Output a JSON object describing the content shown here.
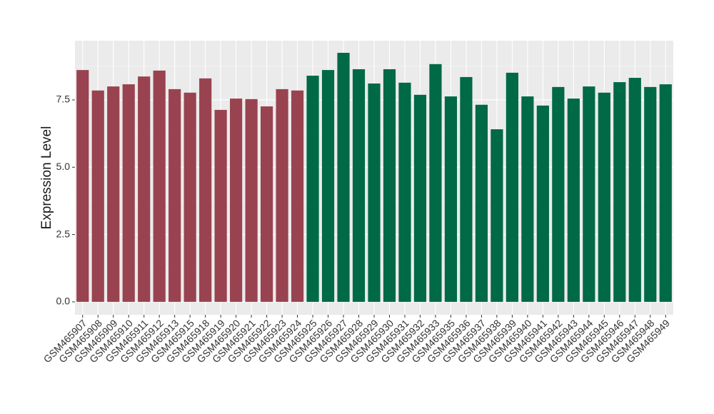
{
  "chart_data": {
    "type": "bar",
    "y_label": "Expression Level",
    "categories": [
      "GSM465907",
      "GSM465908",
      "GSM465909",
      "GSM465910",
      "GSM465911",
      "GSM465912",
      "GSM465913",
      "GSM465915",
      "GSM465918",
      "GSM465919",
      "GSM465920",
      "GSM465921",
      "GSM465922",
      "GSM465923",
      "GSM465924",
      "GSM465925",
      "GSM465926",
      "GSM465927",
      "GSM465928",
      "GSM465929",
      "GSM465930",
      "GSM465931",
      "GSM465932",
      "GSM465933",
      "GSM465935",
      "GSM465936",
      "GSM465937",
      "GSM465938",
      "GSM465939",
      "GSM465940",
      "GSM465941",
      "GSM465942",
      "GSM465943",
      "GSM465944",
      "GSM465945",
      "GSM465946",
      "GSM465947",
      "GSM465948",
      "GSM465949"
    ],
    "values": [
      8.61,
      7.85,
      8.0,
      8.08,
      8.37,
      8.59,
      7.9,
      7.77,
      8.3,
      7.13,
      7.55,
      7.53,
      7.26,
      7.9,
      7.85,
      8.4,
      8.61,
      9.25,
      8.64,
      8.11,
      8.64,
      8.14,
      7.69,
      8.83,
      7.63,
      8.35,
      7.32,
      6.41,
      8.51,
      7.63,
      7.29,
      7.98,
      7.55,
      8.0,
      7.77,
      8.16,
      8.32,
      7.98,
      8.08
    ],
    "colors": [
      "#994350",
      "#994350",
      "#994350",
      "#994350",
      "#994350",
      "#994350",
      "#994350",
      "#994350",
      "#994350",
      "#994350",
      "#994350",
      "#994350",
      "#994350",
      "#994350",
      "#994350",
      "#006946",
      "#006946",
      "#006946",
      "#006946",
      "#006946",
      "#006946",
      "#006946",
      "#006946",
      "#006946",
      "#006946",
      "#006946",
      "#006946",
      "#006946",
      "#006946",
      "#006946",
      "#006946",
      "#006946",
      "#006946",
      "#006946",
      "#006946",
      "#006946",
      "#006946",
      "#006946",
      "#006946"
    ],
    "ylim": [
      -0.48,
      9.7
    ],
    "yticks": [
      {
        "value": 0,
        "label": "0.0"
      },
      {
        "value": 2.5,
        "label": "2.5"
      },
      {
        "value": 5,
        "label": "5.0"
      },
      {
        "value": 7.5,
        "label": "7.5"
      }
    ],
    "grid": true
  }
}
